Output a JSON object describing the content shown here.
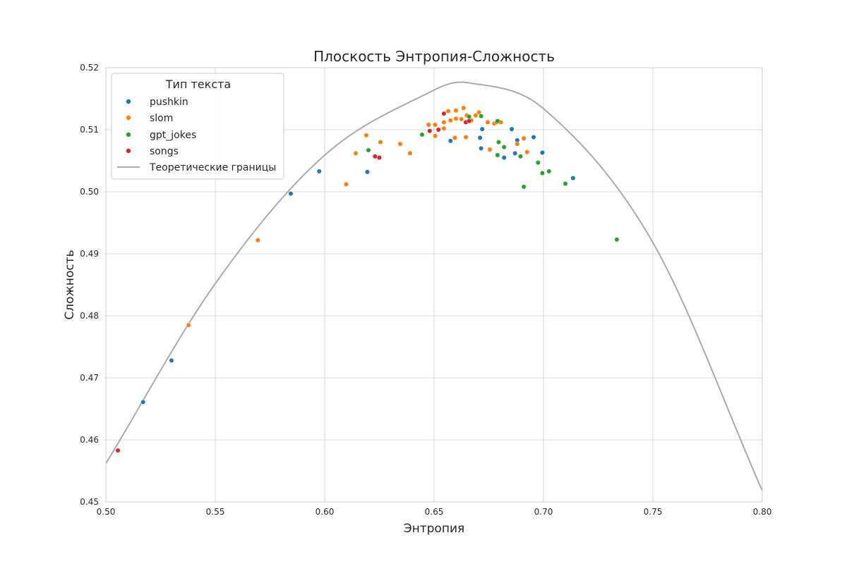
{
  "chart_data": {
    "type": "scatter",
    "title": "Плоскость Энтропия-Сложность",
    "xlabel": "Энтропия",
    "ylabel": "Сложность",
    "xlim": [
      0.5,
      0.8
    ],
    "ylim": [
      0.45,
      0.52
    ],
    "xticks": [
      "0.50",
      "0.55",
      "0.60",
      "0.65",
      "0.70",
      "0.75",
      "0.80"
    ],
    "yticks": [
      "0.45",
      "0.46",
      "0.47",
      "0.48",
      "0.49",
      "0.50",
      "0.51",
      "0.52"
    ],
    "grid": true,
    "legend_title": "Тип текста",
    "legend_position": "top-left",
    "series": [
      {
        "name": "pushkin",
        "color": "#1f77b4",
        "points": [
          [
            0.517,
            0.4661
          ],
          [
            0.53,
            0.4728
          ],
          [
            0.5845,
            0.4997
          ],
          [
            0.5975,
            0.5033
          ],
          [
            0.6195,
            0.5032
          ],
          [
            0.6575,
            0.5082
          ],
          [
            0.6715,
            0.507
          ],
          [
            0.671,
            0.5087
          ],
          [
            0.672,
            0.5101
          ],
          [
            0.682,
            0.5055
          ],
          [
            0.6855,
            0.5101
          ],
          [
            0.687,
            0.5062
          ],
          [
            0.688,
            0.5083
          ],
          [
            0.6955,
            0.5088
          ],
          [
            0.6995,
            0.5063
          ],
          [
            0.7135,
            0.5022
          ]
        ]
      },
      {
        "name": "slom",
        "color": "#ff7f0e",
        "points": [
          [
            0.5378,
            0.4785
          ],
          [
            0.5695,
            0.4922
          ],
          [
            0.6098,
            0.5012
          ],
          [
            0.6142,
            0.5062
          ],
          [
            0.619,
            0.5091
          ],
          [
            0.6255,
            0.508
          ],
          [
            0.6345,
            0.5077
          ],
          [
            0.639,
            0.5062
          ],
          [
            0.6475,
            0.5108
          ],
          [
            0.6505,
            0.5108
          ],
          [
            0.6505,
            0.509
          ],
          [
            0.6545,
            0.5112
          ],
          [
            0.6545,
            0.5102
          ],
          [
            0.6565,
            0.513
          ],
          [
            0.6575,
            0.5115
          ],
          [
            0.6595,
            0.5087
          ],
          [
            0.66,
            0.5118
          ],
          [
            0.66,
            0.5131
          ],
          [
            0.6625,
            0.5117
          ],
          [
            0.6635,
            0.5135
          ],
          [
            0.6645,
            0.5088
          ],
          [
            0.665,
            0.5123
          ],
          [
            0.667,
            0.5115
          ],
          [
            0.669,
            0.5123
          ],
          [
            0.6705,
            0.5128
          ],
          [
            0.6745,
            0.5112
          ],
          [
            0.6755,
            0.5068
          ],
          [
            0.6775,
            0.511
          ],
          [
            0.6785,
            0.5112
          ],
          [
            0.6805,
            0.5112
          ],
          [
            0.688,
            0.5077
          ],
          [
            0.691,
            0.5086
          ],
          [
            0.6925,
            0.5064
          ]
        ]
      },
      {
        "name": "gpt_jokes",
        "color": "#2ca02c",
        "points": [
          [
            0.62,
            0.5067
          ],
          [
            0.6445,
            0.5092
          ],
          [
            0.666,
            0.5121
          ],
          [
            0.6715,
            0.5122
          ],
          [
            0.679,
            0.5114
          ],
          [
            0.6795,
            0.508
          ],
          [
            0.679,
            0.5059
          ],
          [
            0.682,
            0.5072
          ],
          [
            0.6895,
            0.5057
          ],
          [
            0.6975,
            0.5047
          ],
          [
            0.6995,
            0.503
          ],
          [
            0.691,
            0.5008
          ],
          [
            0.7025,
            0.5033
          ],
          [
            0.71,
            0.5013
          ],
          [
            0.7335,
            0.4923
          ]
        ]
      },
      {
        "name": "songs",
        "color": "#d62728",
        "points": [
          [
            0.5055,
            0.4583
          ],
          [
            0.623,
            0.5057
          ],
          [
            0.625,
            0.5055
          ],
          [
            0.648,
            0.5098
          ],
          [
            0.652,
            0.51
          ],
          [
            0.6545,
            0.5126
          ],
          [
            0.6645,
            0.5112
          ],
          [
            0.666,
            0.5114
          ]
        ]
      }
    ],
    "boundary": {
      "name": "Теоретические границы",
      "color": "#aaaaaa",
      "peak_x": 0.665,
      "peak_y": 0.5176,
      "points": [
        [
          0.5,
          0.4562
        ],
        [
          0.55,
          0.4852
        ],
        [
          0.6,
          0.5059
        ],
        [
          0.65,
          0.5164
        ],
        [
          0.665,
          0.5176
        ],
        [
          0.7,
          0.5134
        ],
        [
          0.75,
          0.4918
        ],
        [
          0.8,
          0.4518
        ]
      ]
    }
  }
}
